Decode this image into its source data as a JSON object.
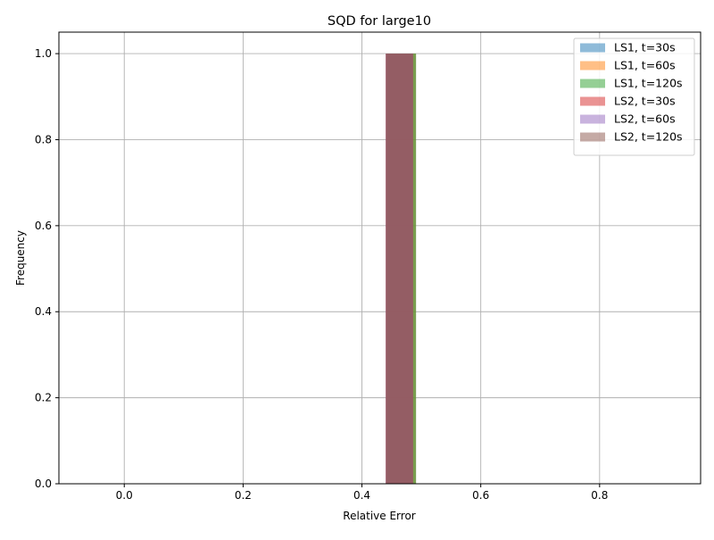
{
  "chart_data": {
    "type": "bar",
    "title": "SQD for large10",
    "xlabel": "Relative Error",
    "ylabel": "Frequency",
    "xlim": [
      -0.11,
      0.97
    ],
    "ylim": [
      0,
      1.05
    ],
    "xticks": [
      "0.0",
      "0.2",
      "0.4",
      "0.6",
      "0.8"
    ],
    "yticks": [
      "0.0",
      "0.2",
      "0.4",
      "0.6",
      "0.8",
      "1.0"
    ],
    "grid": true,
    "legend_position": "top-right",
    "series": [
      {
        "name": "LS1, t=30s",
        "color": "#1f77b4",
        "bins": [
          {
            "x0": 0.441,
            "x1": 0.491,
            "value": 1.0
          }
        ]
      },
      {
        "name": "LS1, t=60s",
        "color": "#ff7f0e",
        "bins": [
          {
            "x0": 0.441,
            "x1": 0.491,
            "value": 1.0
          }
        ]
      },
      {
        "name": "LS1, t=120s",
        "color": "#2ca02c",
        "bins": [
          {
            "x0": 0.441,
            "x1": 0.491,
            "value": 1.0
          }
        ]
      },
      {
        "name": "LS2, t=30s",
        "color": "#d62728",
        "bins": [
          {
            "x0": 0.44,
            "x1": 0.486,
            "value": 1.0
          }
        ]
      },
      {
        "name": "LS2, t=60s",
        "color": "#9467bd",
        "bins": [
          {
            "x0": 0.44,
            "x1": 0.486,
            "value": 1.0
          }
        ]
      },
      {
        "name": "LS2, t=120s",
        "color": "#8c564b",
        "bins": [
          {
            "x0": 0.44,
            "x1": 0.486,
            "value": 1.0
          }
        ]
      }
    ]
  }
}
